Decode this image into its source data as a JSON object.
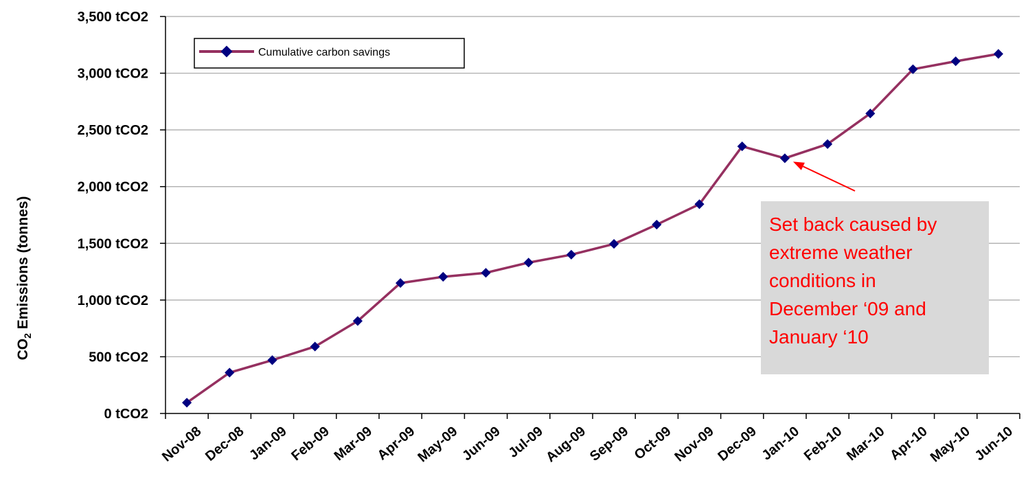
{
  "chart_data": {
    "type": "line",
    "title": "",
    "ylabel_main": "CO",
    "ylabel_subscript": "2",
    "ylabel_rest": " Emissions (tonnes)",
    "xlabel": "",
    "ylim": [
      0,
      3500
    ],
    "ytick_values": [
      0,
      500,
      1000,
      1500,
      2000,
      2500,
      3000,
      3500
    ],
    "ytick_labels": [
      "0 tCO2",
      "500 tCO2",
      "1,000 tCO2",
      "1,500 tCO2",
      "2,000 tCO2",
      "2,500 tCO2",
      "3,000 tCO2",
      "3,500 tCO2"
    ],
    "grid": true,
    "legend_placement": "top-left",
    "categories": [
      "Nov-08",
      "Dec-08",
      "Jan-09",
      "Feb-09",
      "Mar-09",
      "Apr-09",
      "May-09",
      "Jun-09",
      "Jul-09",
      "Aug-09",
      "Sep-09",
      "Oct-09",
      "Nov-09",
      "Dec-09",
      "Jan-10",
      "Feb-10",
      "Mar-10",
      "Apr-10",
      "May-10",
      "Jun-10"
    ],
    "series": [
      {
        "name": "Cumulative carbon savings",
        "color": "#953060",
        "marker_color": "#000080",
        "values": [
          95,
          360,
          470,
          590,
          815,
          1150,
          1205,
          1240,
          1330,
          1400,
          1495,
          1665,
          1845,
          2355,
          2250,
          2375,
          2645,
          3035,
          3105,
          3170
        ]
      }
    ],
    "annotation": {
      "lines": [
        "Set back caused by",
        "extreme weather",
        "conditions in",
        "December ‘09 and",
        "January ‘10"
      ],
      "target_category": "Jan-10",
      "text_color": "#ff0000",
      "box_color": "#d9d9d9",
      "arrow_color": "#ff0000"
    }
  }
}
